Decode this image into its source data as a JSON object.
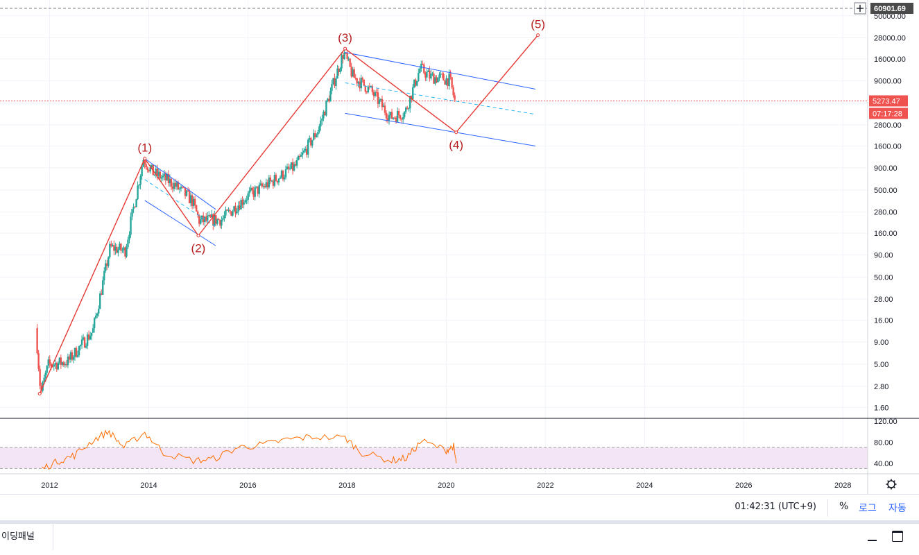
{
  "price_scale": {
    "labels": [
      "50000.00",
      "28000.00",
      "16000.00",
      "9000.00",
      "5000.00",
      "2800.00",
      "1600.00",
      "900.00",
      "500.00",
      "280.00",
      "160.00",
      "90.00",
      "50.00",
      "28.00",
      "16.00",
      "9.00",
      "5.00",
      "2.80",
      "1.60"
    ],
    "top_value_label": "60901.69",
    "last_price_label": "5273.47",
    "countdown_label": "07:17:28"
  },
  "time_scale": {
    "labels": [
      "2012",
      "2014",
      "2016",
      "2018",
      "2020",
      "2022",
      "2024",
      "2026",
      "2028"
    ]
  },
  "indicator_scale": {
    "labels": [
      "120.00",
      "80.00",
      "40.00"
    ]
  },
  "wave_labels": [
    "(1)",
    "(2)",
    "(3)",
    "(4)",
    "(5)"
  ],
  "colors": {
    "up": "#26a69a",
    "down": "#ef5350",
    "wave": "#e53935",
    "wave_label": "#b71c1c",
    "channel": "#2962ff",
    "indicator_line": "#ff6d00",
    "indicator_band": "#e1bee7",
    "price_badge": "#ef5350",
    "grid": "#f0f3fa"
  },
  "icons": {
    "crosshair": "plus-icon",
    "settings": "gear-icon",
    "minimize": "minimize-icon",
    "maximize": "maximize-icon"
  },
  "chart_data": [
    {
      "type": "line",
      "name": "price",
      "scale": "log",
      "x": [
        2011.75,
        2011.85,
        2012.0,
        2012.4,
        2012.9,
        2013.25,
        2013.55,
        2013.92,
        2014.1,
        2014.5,
        2014.9,
        2015.05,
        2015.5,
        2016.0,
        2016.5,
        2017.0,
        2017.45,
        2017.96,
        2018.15,
        2018.5,
        2018.9,
        2019.2,
        2019.5,
        2019.7,
        2020.1,
        2020.2
      ],
      "values": [
        13,
        2.3,
        4.9,
        5.4,
        12,
        110,
        100,
        1150,
        800,
        600,
        380,
        220,
        230,
        420,
        620,
        950,
        2500,
        19000,
        10000,
        7000,
        3400,
        3900,
        12500,
        10000,
        9200,
        5273.47
      ],
      "ylim": [
        1.2,
        60901.69
      ],
      "xlim": [
        2011.0,
        2028.5
      ],
      "elliott_wave": {
        "labels": [
          "(1)",
          "(2)",
          "(3)",
          "(4)",
          "(5)"
        ],
        "x": [
          2011.8,
          2013.92,
          2015.0,
          2017.96,
          2020.2,
          2021.85
        ],
        "values": [
          2.3,
          1150,
          150,
          21000,
          2300,
          30000
        ]
      },
      "last_price": 5273.47,
      "top_value": 60901.69
    },
    {
      "type": "line",
      "name": "indicator",
      "x": [
        2011.85,
        2012.2,
        2012.5,
        2012.9,
        2013.2,
        2013.5,
        2013.92,
        2014.3,
        2014.9,
        2015.3,
        2015.8,
        2016.3,
        2016.8,
        2017.3,
        2017.96,
        2018.3,
        2018.9,
        2019.2,
        2019.5,
        2020.0,
        2020.15,
        2020.2
      ],
      "values": [
        30,
        45,
        55,
        85,
        100,
        70,
        98,
        60,
        45,
        48,
        70,
        75,
        85,
        90,
        88,
        60,
        45,
        50,
        82,
        65,
        72,
        40
      ],
      "ylim": [
        20,
        125
      ],
      "bands": [
        30,
        70
      ]
    }
  ],
  "status_bar": {
    "clock": "01:42:31 (UTC+9)",
    "percent_label": "%",
    "log_label": "로그",
    "auto_label": "자동"
  },
  "bottom_panel": {
    "title": "이딩패널"
  }
}
